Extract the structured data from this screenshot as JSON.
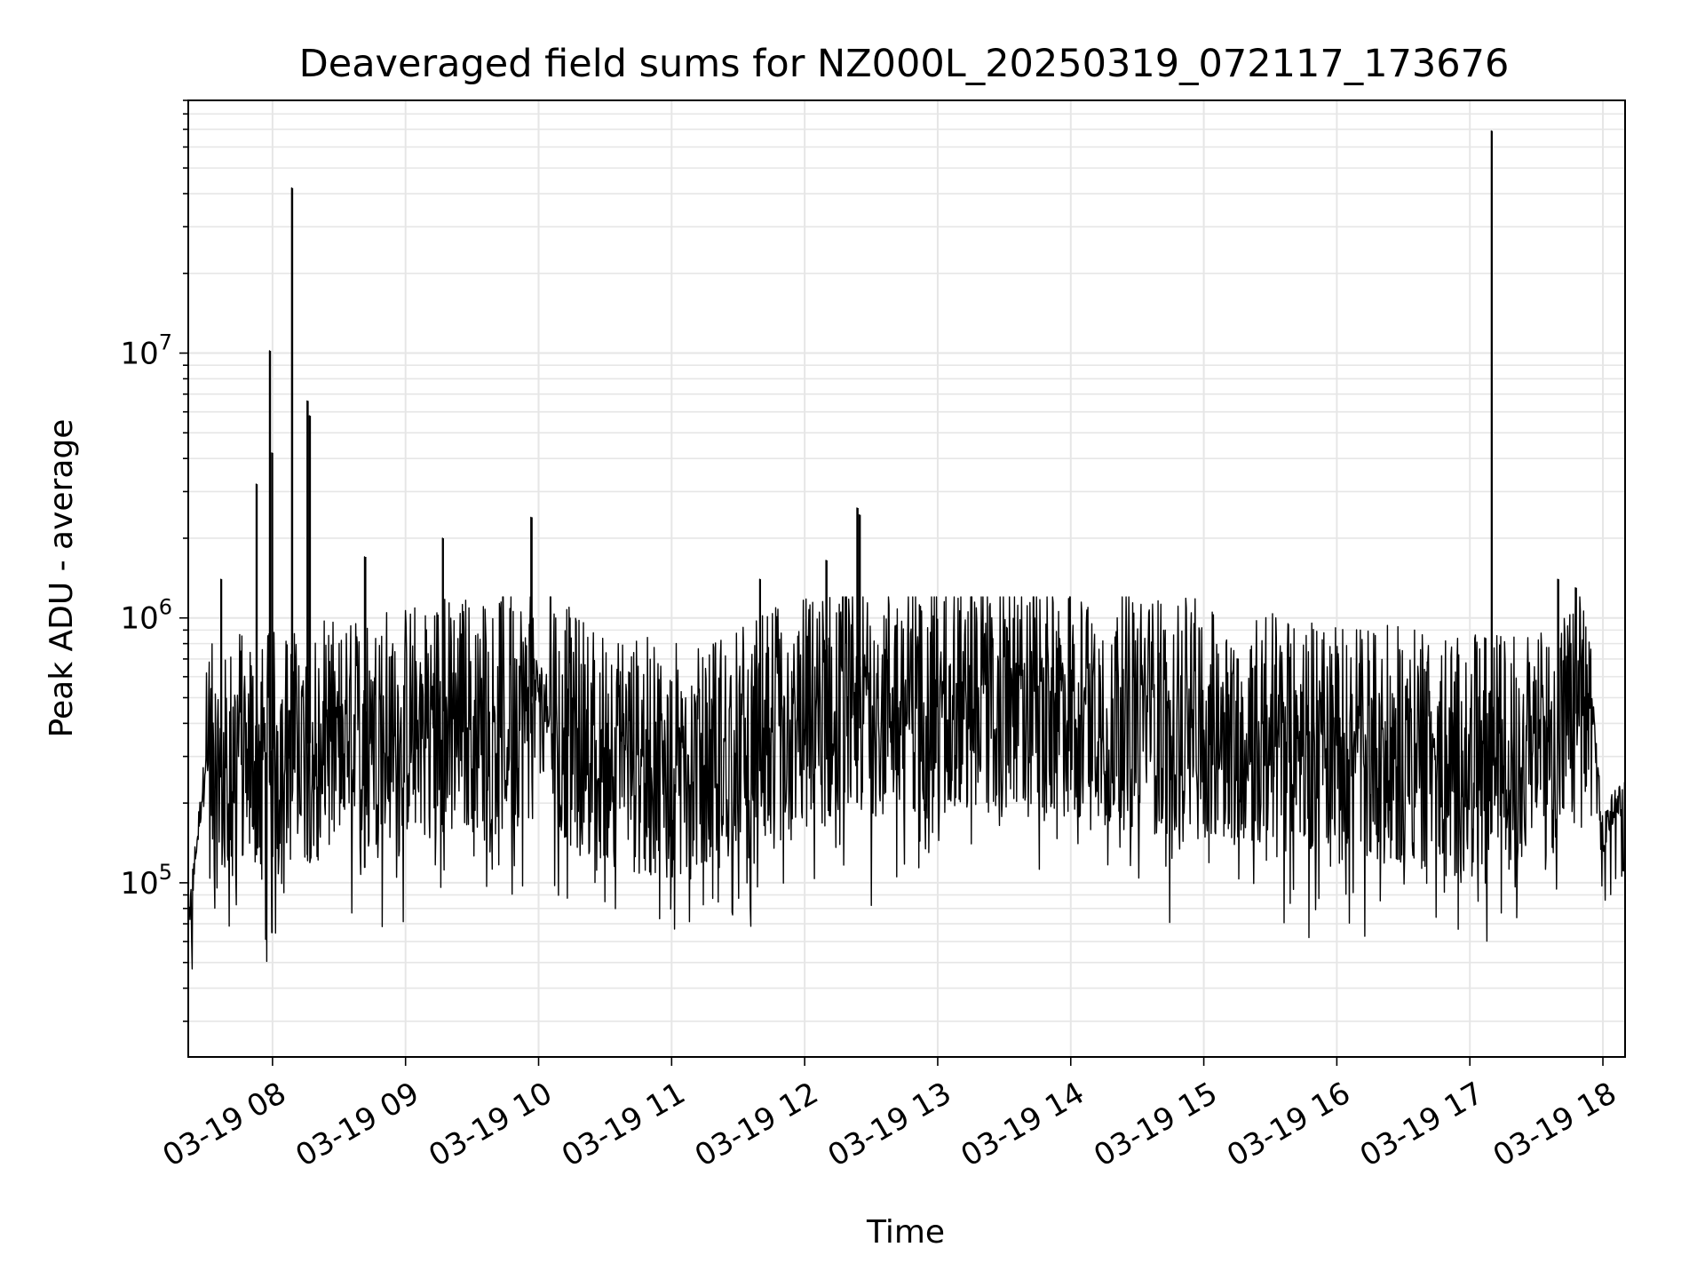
{
  "chart_data": {
    "type": "line",
    "title": "Deaveraged field sums for NZ000L_20250319_072117_173676",
    "xlabel": "Time",
    "ylabel": "Peak ADU - average",
    "yscale": "log",
    "xlim": [
      "03-19 07:22",
      "03-19 18:10"
    ],
    "ylim": [
      22000,
      90000000
    ],
    "x_ticks": [
      "03-19 08",
      "03-19 09",
      "03-19 10",
      "03-19 11",
      "03-19 12",
      "03-19 13",
      "03-19 14",
      "03-19 15",
      "03-19 16",
      "03-19 17",
      "03-19 18"
    ],
    "y_ticks": [
      {
        "value": 100000,
        "base": "10",
        "exp": "5"
      },
      {
        "value": 1000000,
        "base": "10",
        "exp": "6"
      },
      {
        "value": 10000000,
        "base": "10",
        "exp": "7"
      }
    ],
    "grid": true,
    "legend": "none",
    "series": [
      {
        "color": "#000000",
        "x": [
          "03-19 07:22",
          "03-19 07:30",
          "03-19 07:38",
          "03-19 07:45",
          "03-19 07:52",
          "03-19 08:00",
          "03-19 08:10",
          "03-19 08:20",
          "03-19 08:35",
          "03-19 08:50",
          "03-19 09:05",
          "03-19 09:20",
          "03-19 09:40",
          "03-19 09:55",
          "03-19 10:00",
          "03-19 10:15",
          "03-19 10:30",
          "03-19 10:45",
          "03-19 11:00",
          "03-19 11:15",
          "03-19 11:30",
          "03-19 11:45",
          "03-19 12:00",
          "03-19 12:20",
          "03-19 12:40",
          "03-19 13:00",
          "03-19 13:20",
          "03-19 13:40",
          "03-19 14:00",
          "03-19 14:20",
          "03-19 14:40",
          "03-19 15:00",
          "03-19 15:20",
          "03-19 15:40",
          "03-19 16:00",
          "03-19 16:20",
          "03-19 16:40",
          "03-19 17:00",
          "03-19 17:10",
          "03-19 17:20",
          "03-19 17:30",
          "03-19 17:40",
          "03-19 17:50",
          "03-19 17:55",
          "03-19 18:00",
          "03-19 18:05",
          "03-19 18:10"
        ],
        "y": [
          70000,
          300000,
          250000,
          350000,
          300000,
          320000,
          330000,
          340000,
          350000,
          380000,
          420000,
          450000,
          460000,
          470000,
          560000,
          380000,
          330000,
          300000,
          290000,
          300000,
          340000,
          380000,
          430000,
          480000,
          520000,
          540000,
          530000,
          510000,
          480000,
          450000,
          430000,
          410000,
          390000,
          370000,
          350000,
          330000,
          320000,
          300000,
          310000,
          320000,
          330000,
          380000,
          450000,
          480000,
          150000,
          200000,
          210000
        ]
      }
    ],
    "spikes": [
      {
        "x": "03-19 07:37",
        "y": 1400000
      },
      {
        "x": "03-19 07:53",
        "y": 3200000
      },
      {
        "x": "03-19 07:59",
        "y": 10200000
      },
      {
        "x": "03-19 08:00",
        "y": 4200000
      },
      {
        "x": "03-19 08:09",
        "y": 42000000
      },
      {
        "x": "03-19 08:16",
        "y": 6600000
      },
      {
        "x": "03-19 08:17",
        "y": 5800000
      },
      {
        "x": "03-19 08:42",
        "y": 1700000
      },
      {
        "x": "03-19 09:17",
        "y": 2000000
      },
      {
        "x": "03-19 09:57",
        "y": 2400000
      },
      {
        "x": "03-19 11:40",
        "y": 1400000
      },
      {
        "x": "03-19 12:10",
        "y": 1650000
      },
      {
        "x": "03-19 12:24",
        "y": 2600000
      },
      {
        "x": "03-19 12:25",
        "y": 2450000
      },
      {
        "x": "03-19 17:10",
        "y": 69000000
      },
      {
        "x": "03-19 17:40",
        "y": 1400000
      },
      {
        "x": "03-19 17:48",
        "y": 1300000
      }
    ]
  }
}
